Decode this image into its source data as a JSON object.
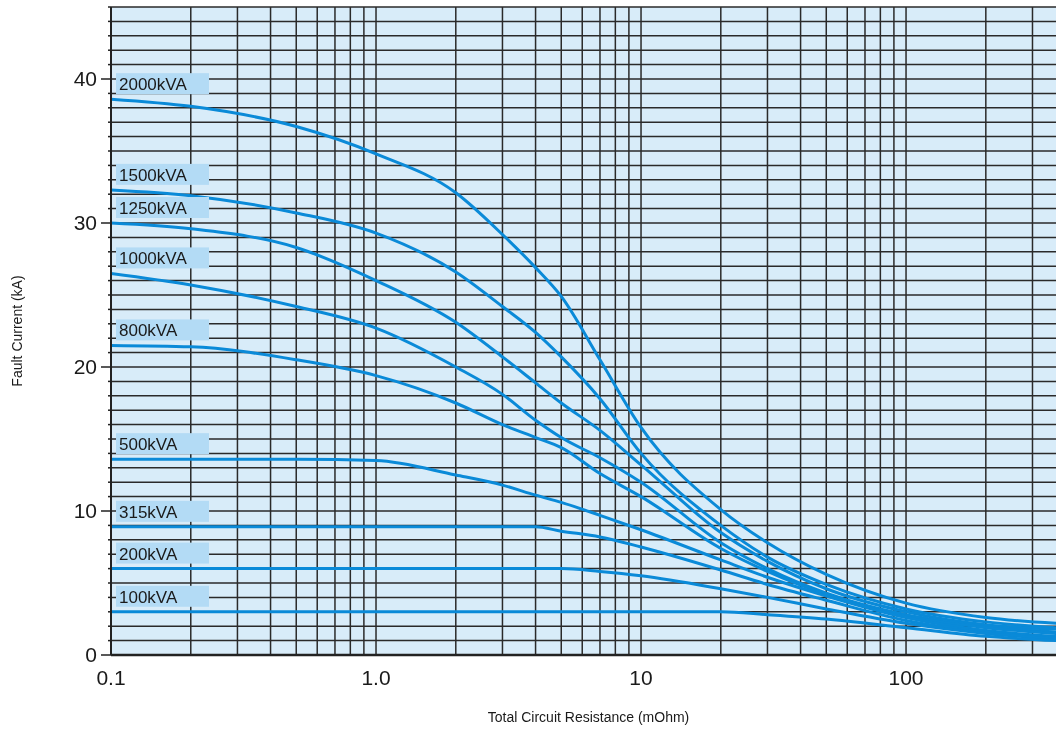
{
  "chart_data": {
    "type": "line",
    "xlabel": "Total Circuit Resistance (mOhm)",
    "ylabel": "Fault Current (kA)",
    "log": "x",
    "grid": true,
    "legend": false,
    "marker": "none",
    "line_style": "solid",
    "xlim": [
      0.1,
      368
    ],
    "ylim": [
      0,
      45
    ],
    "xticks": [
      0.1,
      {
        "value": 0.2,
        "label": null
      },
      {
        "value": 0.3,
        "label": null
      },
      {
        "value": 0.4,
        "label": null
      },
      {
        "value": 0.5,
        "label": null
      },
      {
        "value": 0.6,
        "label": null
      },
      {
        "value": 0.7,
        "label": null
      },
      {
        "value": 0.8,
        "label": null
      },
      {
        "value": 0.9,
        "label": null
      },
      {
        "value": 1,
        "label": "1.0"
      },
      {
        "value": 2,
        "label": null
      },
      {
        "value": 3,
        "label": null
      },
      {
        "value": 4,
        "label": null
      },
      {
        "value": 5,
        "label": null
      },
      {
        "value": 6,
        "label": null
      },
      {
        "value": 7,
        "label": null
      },
      {
        "value": 8,
        "label": null
      },
      {
        "value": 9,
        "label": null
      },
      10,
      {
        "value": 20,
        "label": null
      },
      {
        "value": 30,
        "label": null
      },
      {
        "value": 40,
        "label": null
      },
      {
        "value": 50,
        "label": null
      },
      {
        "value": 60,
        "label": null
      },
      {
        "value": 70,
        "label": null
      },
      {
        "value": 80,
        "label": null
      },
      {
        "value": 90,
        "label": null
      },
      100,
      {
        "value": 200,
        "label": null
      },
      {
        "value": 300,
        "label": null
      }
    ],
    "yticks": [
      0,
      {
        "value": 1,
        "label": null
      },
      {
        "value": 2,
        "label": null
      },
      {
        "value": 3,
        "label": null
      },
      {
        "value": 4,
        "label": null
      },
      {
        "value": 5,
        "label": null
      },
      {
        "value": 6,
        "label": null
      },
      {
        "value": 7,
        "label": null
      },
      {
        "value": 8,
        "label": null
      },
      {
        "value": 9,
        "label": null
      },
      10,
      {
        "value": 11,
        "label": null
      },
      {
        "value": 12,
        "label": null
      },
      {
        "value": 13,
        "label": null
      },
      {
        "value": 14,
        "label": null
      },
      {
        "value": 15,
        "label": null
      },
      {
        "value": 16,
        "label": null
      },
      {
        "value": 17,
        "label": null
      },
      {
        "value": 18,
        "label": null
      },
      {
        "value": 19,
        "label": null
      },
      20,
      {
        "value": 21,
        "label": null
      },
      {
        "value": 22,
        "label": null
      },
      {
        "value": 23,
        "label": null
      },
      {
        "value": 24,
        "label": null
      },
      {
        "value": 25,
        "label": null
      },
      {
        "value": 26,
        "label": null
      },
      {
        "value": 27,
        "label": null
      },
      {
        "value": 28,
        "label": null
      },
      {
        "value": 29,
        "label": null
      },
      30,
      {
        "value": 31,
        "label": null
      },
      {
        "value": 32,
        "label": null
      },
      {
        "value": 33,
        "label": null
      },
      {
        "value": 34,
        "label": null
      },
      {
        "value": 35,
        "label": null
      },
      {
        "value": 36,
        "label": null
      },
      {
        "value": 37,
        "label": null
      },
      {
        "value": 38,
        "label": null
      },
      {
        "value": 39,
        "label": null
      },
      40,
      {
        "value": 41,
        "label": null
      },
      {
        "value": 42,
        "label": null
      },
      {
        "value": 43,
        "label": null
      },
      {
        "value": 44,
        "label": null
      },
      {
        "value": 45,
        "label": null
      }
    ],
    "x": [
      0.1,
      0.2,
      0.5,
      1,
      2,
      3,
      4,
      5,
      7,
      10,
      20,
      30,
      50,
      100,
      200,
      368
    ],
    "series": [
      {
        "name": "2000kVA",
        "color": "#0a8ad8",
        "values": [
          38.6,
          38.1,
          36.7,
          34.8,
          32.1,
          29.2,
          26.9,
          24.9,
          20.5,
          15.8,
          10.1,
          7.8,
          5.6,
          3.6,
          2.6,
          2.2
        ]
      },
      {
        "name": "1500kVA",
        "color": "#0a8ad8",
        "values": [
          32.3,
          31.9,
          30.7,
          29.3,
          26.6,
          24.2,
          22.4,
          20.7,
          17.8,
          14.0,
          9.0,
          6.8,
          4.9,
          3.2,
          2.3,
          1.9
        ]
      },
      {
        "name": "1250kVA",
        "color": "#0a8ad8",
        "values": [
          30.0,
          29.6,
          28.3,
          26.0,
          23.1,
          20.7,
          18.9,
          17.5,
          15.6,
          13.2,
          8.5,
          6.5,
          4.6,
          3.0,
          2.1,
          1.8
        ]
      },
      {
        "name": "1000kVA",
        "color": "#0a8ad8",
        "values": [
          26.5,
          25.7,
          24.2,
          22.7,
          20.0,
          18.1,
          16.3,
          15.1,
          13.7,
          12.0,
          7.8,
          6.0,
          4.3,
          2.8,
          2.0,
          1.6
        ]
      },
      {
        "name": "800kVA",
        "color": "#0a8ad8",
        "values": [
          21.5,
          21.4,
          20.5,
          19.4,
          17.5,
          16.0,
          15.1,
          14.4,
          12.6,
          11.0,
          7.4,
          5.8,
          4.2,
          2.7,
          1.9,
          1.5
        ]
      },
      {
        "name": "500kVA",
        "color": "#0a8ad8",
        "values": [
          13.6,
          13.6,
          13.6,
          13.5,
          12.5,
          11.8,
          11.1,
          10.6,
          9.7,
          8.7,
          6.6,
          5.4,
          4.1,
          2.6,
          1.7,
          1.3
        ]
      },
      {
        "name": "315kVA",
        "color": "#0a8ad8",
        "values": [
          8.9,
          8.9,
          8.9,
          8.9,
          8.9,
          8.9,
          8.9,
          8.6,
          8.2,
          7.5,
          5.9,
          4.9,
          3.8,
          2.4,
          1.6,
          1.2
        ]
      },
      {
        "name": "200kVA",
        "color": "#0a8ad8",
        "values": [
          6.0,
          6.0,
          6.0,
          6.0,
          6.0,
          6.0,
          6.0,
          6.0,
          5.8,
          5.5,
          4.6,
          4.0,
          3.2,
          2.2,
          1.5,
          1.1
        ]
      },
      {
        "name": "100kVA",
        "color": "#0a8ad8",
        "values": [
          3.0,
          3.0,
          3.0,
          3.0,
          3.0,
          3.0,
          3.0,
          3.0,
          3.0,
          3.0,
          3.0,
          2.8,
          2.5,
          1.9,
          1.3,
          1.0
        ]
      }
    ]
  }
}
